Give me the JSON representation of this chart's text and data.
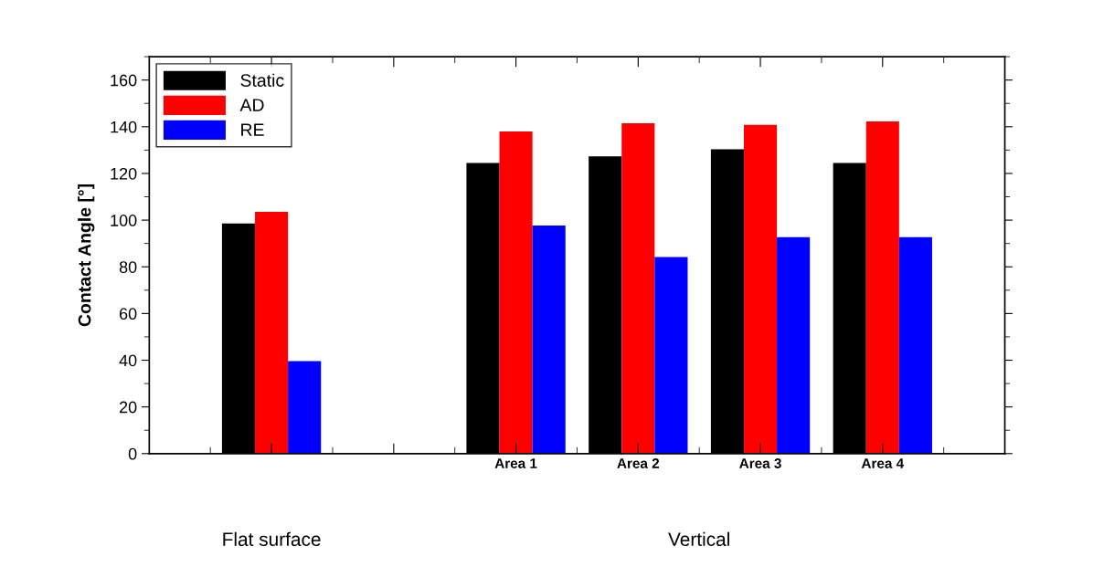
{
  "chart_data": {
    "type": "bar",
    "ylabel": "Contact Angle [°]",
    "categories": [
      null,
      null,
      "Area 1",
      "Area 2",
      "Area 3",
      "Area 4"
    ],
    "series": [
      {
        "name": "Static",
        "color": "#000000",
        "values": [
          98.6,
          null,
          124.5,
          127.3,
          130.3,
          124.5
        ]
      },
      {
        "name": "AD",
        "color": "#ff0000",
        "values": [
          103.6,
          null,
          138,
          141.5,
          140.8,
          142.3
        ]
      },
      {
        "name": "RE",
        "color": "#0000ff",
        "values": [
          39.6,
          null,
          97.7,
          84.2,
          92.7,
          92.7
        ]
      }
    ],
    "ylim": [
      0,
      170
    ],
    "yticks": [
      0,
      20,
      40,
      60,
      80,
      100,
      120,
      140,
      160
    ],
    "legend": "top left",
    "grid": false,
    "annotations": [
      "Flat surface",
      "Vertical"
    ]
  }
}
